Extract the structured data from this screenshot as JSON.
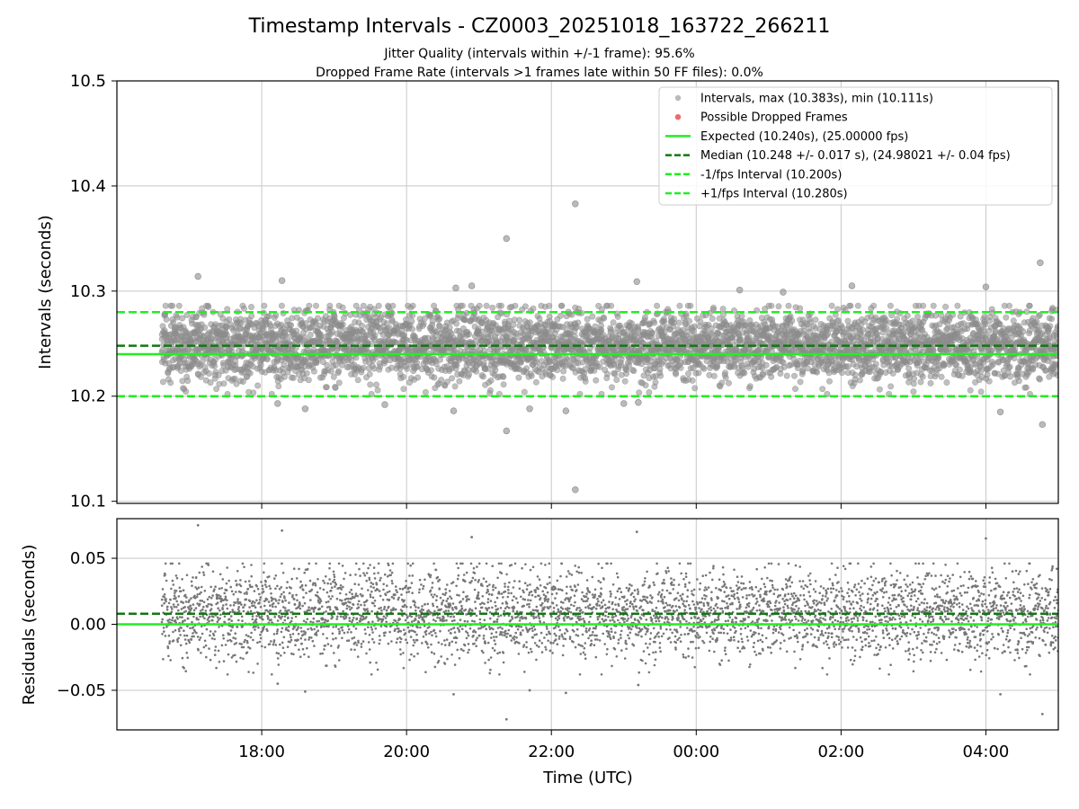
{
  "chart_data": {
    "type": "scatter",
    "title": "Timestamp Intervals - CZ0003_20251018_163722_266211",
    "subtitle_1": "Jitter Quality (intervals within +/-1 frame): 95.6%",
    "subtitle_2": "Dropped Frame Rate (intervals >1 frames late within 50 FF files): 0.0%",
    "x_label": "Time (UTC)",
    "x_ticks": [
      "18:00",
      "20:00",
      "22:00",
      "00:00",
      "02:00",
      "04:00"
    ],
    "x_tick_hours": [
      18,
      20,
      22,
      24,
      26,
      28
    ],
    "x_range_hours": [
      16.0,
      29.0
    ],
    "data_time_span_hours": [
      16.62,
      29.0
    ],
    "top": {
      "y_label": "Intervals (seconds)",
      "y_ticks": [
        "10.1",
        "10.2",
        "10.3",
        "10.4",
        "10.5"
      ],
      "y_tick_values": [
        10.1,
        10.2,
        10.3,
        10.4,
        10.5
      ],
      "y_range": [
        10.098,
        10.5
      ],
      "expected": 10.24,
      "median": 10.248,
      "minus_fps": 10.2,
      "plus_fps": 10.28,
      "max_interval": 10.383,
      "min_interval": 10.111,
      "std": 0.017,
      "point_count": 4350,
      "outliers": [
        {
          "t": 17.12,
          "v": 10.314
        },
        {
          "t": 18.28,
          "v": 10.31
        },
        {
          "t": 18.22,
          "v": 10.193
        },
        {
          "t": 18.6,
          "v": 10.188
        },
        {
          "t": 19.7,
          "v": 10.192
        },
        {
          "t": 20.65,
          "v": 10.186
        },
        {
          "t": 20.68,
          "v": 10.303
        },
        {
          "t": 20.9,
          "v": 10.305
        },
        {
          "t": 21.38,
          "v": 10.35
        },
        {
          "t": 21.38,
          "v": 10.167
        },
        {
          "t": 21.7,
          "v": 10.188
        },
        {
          "t": 22.2,
          "v": 10.186
        },
        {
          "t": 22.33,
          "v": 10.383
        },
        {
          "t": 22.33,
          "v": 10.111
        },
        {
          "t": 23.0,
          "v": 10.193
        },
        {
          "t": 23.18,
          "v": 10.309
        },
        {
          "t": 23.2,
          "v": 10.194
        },
        {
          "t": 24.6,
          "v": 10.301
        },
        {
          "t": 25.2,
          "v": 10.299
        },
        {
          "t": 26.15,
          "v": 10.305
        },
        {
          "t": 28.0,
          "v": 10.304
        },
        {
          "t": 28.2,
          "v": 10.185
        },
        {
          "t": 28.75,
          "v": 10.327
        },
        {
          "t": 28.78,
          "v": 10.173
        }
      ]
    },
    "bottom": {
      "y_label": "Residuals (seconds)",
      "y_ticks": [
        "−0.05",
        "0.00",
        "0.05"
      ],
      "y_tick_values": [
        -0.05,
        0.0,
        0.05
      ],
      "y_range": [
        -0.08,
        0.08
      ],
      "expected_line": 0.0,
      "median_line": 0.008,
      "outliers": [
        {
          "t": 17.12,
          "v": 0.075
        },
        {
          "t": 18.28,
          "v": 0.071
        },
        {
          "t": 18.22,
          "v": -0.045
        },
        {
          "t": 18.6,
          "v": -0.051
        },
        {
          "t": 20.65,
          "v": -0.053
        },
        {
          "t": 20.9,
          "v": 0.066
        },
        {
          "t": 21.38,
          "v": -0.072
        },
        {
          "t": 21.7,
          "v": -0.05
        },
        {
          "t": 22.2,
          "v": -0.052
        },
        {
          "t": 23.18,
          "v": 0.07
        },
        {
          "t": 23.2,
          "v": -0.046
        },
        {
          "t": 28.0,
          "v": 0.065
        },
        {
          "t": 28.2,
          "v": -0.053
        },
        {
          "t": 28.78,
          "v": -0.068
        }
      ]
    },
    "legend": {
      "position": "upper-right",
      "items": [
        {
          "key": "intervals",
          "label": "Intervals, max (10.383s), min (10.111s)",
          "marker": "dot",
          "color": "#8c8c8c"
        },
        {
          "key": "dropped",
          "label": "Possible Dropped Frames",
          "marker": "dot",
          "color": "#ee4444"
        },
        {
          "key": "expected",
          "label": "Expected (10.240s), (25.00000 fps)",
          "marker": "solid",
          "color": "#22ee22"
        },
        {
          "key": "median",
          "label": "Median (10.248 +/- 0.017 s), (24.98021 +/- 0.04 fps)",
          "marker": "dash",
          "color": "#117711"
        },
        {
          "key": "minus",
          "label": "-1/fps Interval (10.200s)",
          "marker": "dash",
          "color": "#22ee22"
        },
        {
          "key": "plus",
          "label": "+1/fps Interval (10.280s)",
          "marker": "dash",
          "color": "#22ee22"
        }
      ]
    },
    "colors": {
      "points": "#8c8c8c",
      "residual_points": "#777777",
      "expected": "#22ee22",
      "median": "#117711",
      "fps_bounds": "#22ee22",
      "grid": "#c8c8c8"
    }
  }
}
